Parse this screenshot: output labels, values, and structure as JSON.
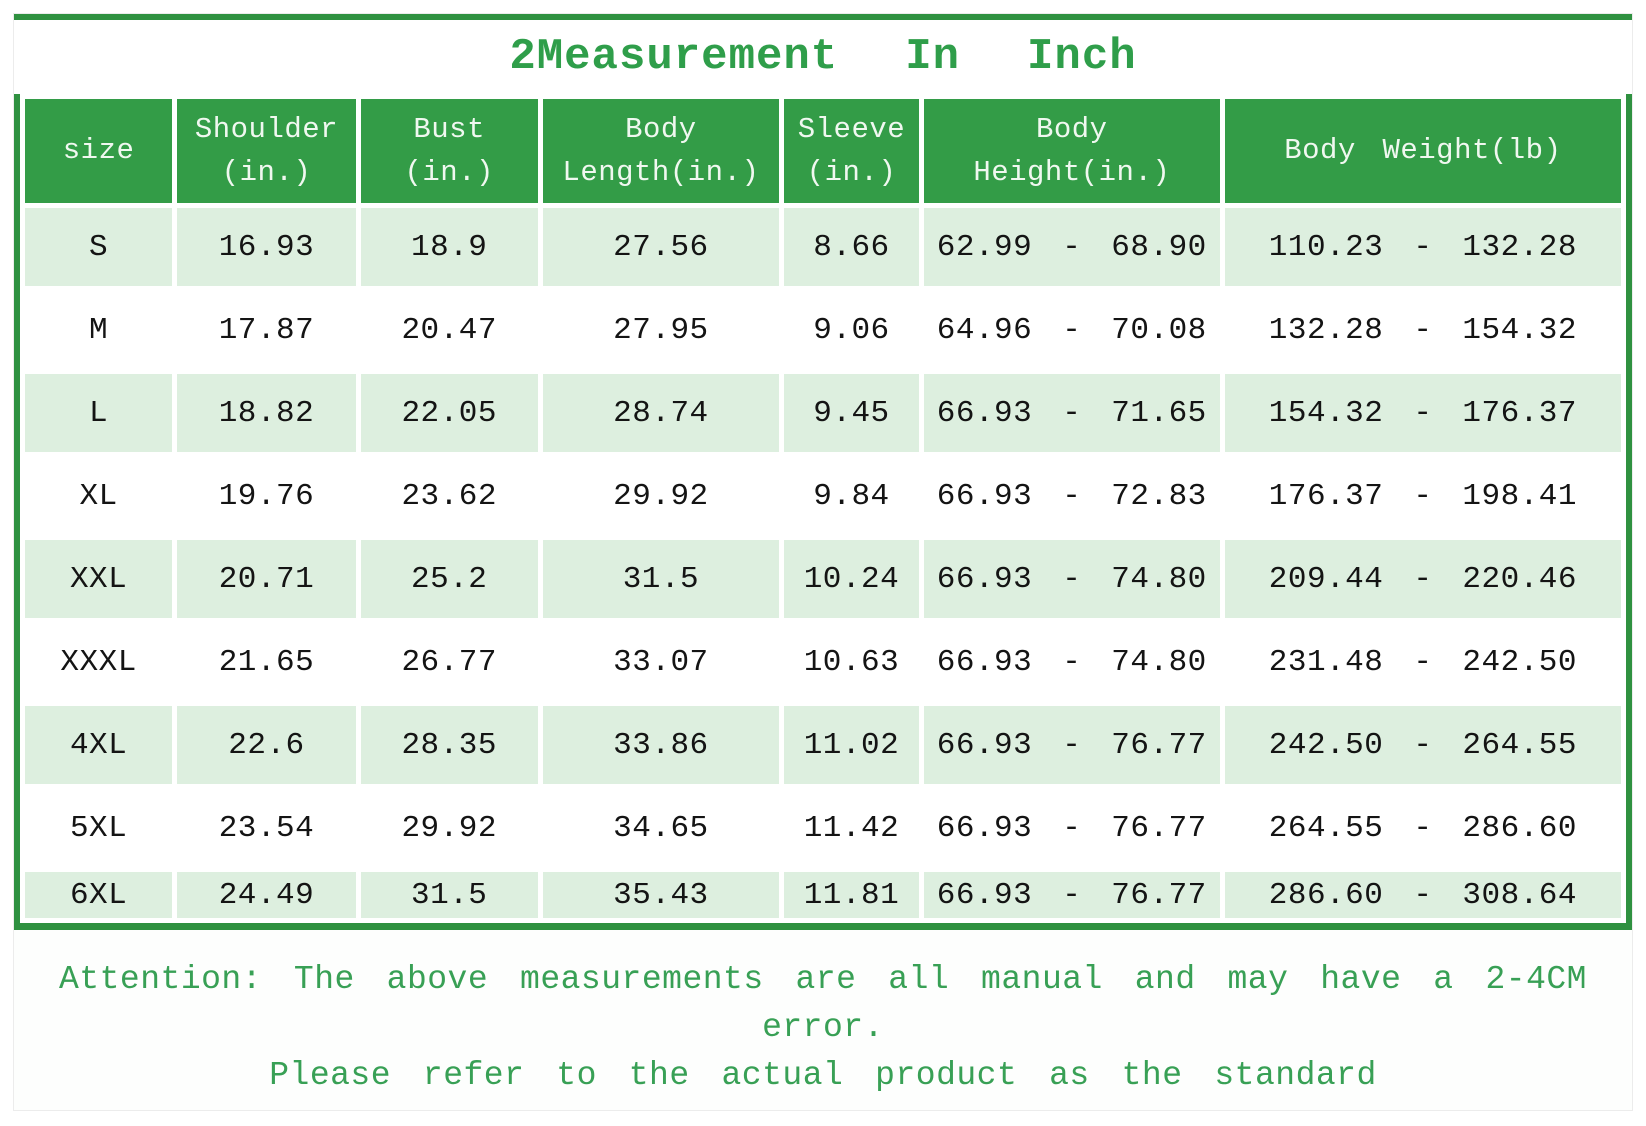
{
  "page": {
    "title": "2Measurement In Inch",
    "footer_line1": "Attention: The above measurements are all manual and may have a 2-4CM error.",
    "footer_line2": "Please refer to the actual product as the standard"
  },
  "colors": {
    "header_green": "#339c47",
    "frame_green": "#2f9140",
    "row_light_green": "#ddefdf",
    "title_green": "#2f9e4a",
    "footer_green": "#38a055",
    "cell_text": "#141414",
    "header_text": "#f0f8f0"
  },
  "table_render": {
    "header_lines": [
      [
        "size"
      ],
      [
        "Shoulder",
        "(in.)"
      ],
      [
        "Bust",
        "(in.)"
      ],
      [
        "Body",
        "Length(in.)"
      ],
      [
        "Sleeve",
        "(in.)"
      ],
      [
        "Body",
        "Height(in.)"
      ],
      [
        "Body Weight(lb)"
      ]
    ],
    "column_widths": [
      "9.4%",
      "11.4%",
      "11.3%",
      "15.1%",
      "8.6%",
      "18.9%",
      "25.3%"
    ]
  },
  "chart_data": {
    "type": "table",
    "title": "2Measurement In Inch",
    "columns": [
      "size",
      "Shoulder (in.)",
      "Bust (in.)",
      "Body Length(in.)",
      "Sleeve (in.)",
      "Body Height(in.)",
      "Body Weight(lb)"
    ],
    "rows": [
      [
        "S",
        "16.93",
        "18.9",
        "27.56",
        "8.66",
        "62.99 - 68.90",
        "110.23 - 132.28"
      ],
      [
        "M",
        "17.87",
        "20.47",
        "27.95",
        "9.06",
        "64.96 - 70.08",
        "132.28 - 154.32"
      ],
      [
        "L",
        "18.82",
        "22.05",
        "28.74",
        "9.45",
        "66.93 - 71.65",
        "154.32 - 176.37"
      ],
      [
        "XL",
        "19.76",
        "23.62",
        "29.92",
        "9.84",
        "66.93 - 72.83",
        "176.37 - 198.41"
      ],
      [
        "XXL",
        "20.71",
        "25.2",
        "31.5",
        "10.24",
        "66.93 - 74.80",
        "209.44 - 220.46"
      ],
      [
        "XXXL",
        "21.65",
        "26.77",
        "33.07",
        "10.63",
        "66.93 - 74.80",
        "231.48 - 242.50"
      ],
      [
        "4XL",
        "22.6",
        "28.35",
        "33.86",
        "11.02",
        "66.93 - 76.77",
        "242.50 - 264.55"
      ],
      [
        "5XL",
        "23.54",
        "29.92",
        "34.65",
        "11.42",
        "66.93 - 76.77",
        "264.55 - 286.60"
      ],
      [
        "6XL",
        "24.49",
        "31.5",
        "35.43",
        "11.81",
        "66.93 - 76.77",
        "286.60 - 308.64"
      ]
    ],
    "notes": [
      "Attention: The above measurements are all manual and may have a 2-4CM error.",
      "Please refer to the actual product as the standard"
    ],
    "layout_hints": {
      "zebra_rows": "odd rows pale green, even rows white",
      "header_style": "green background, white text",
      "grid": "white 5px gaps between cells, green outer frame"
    }
  }
}
